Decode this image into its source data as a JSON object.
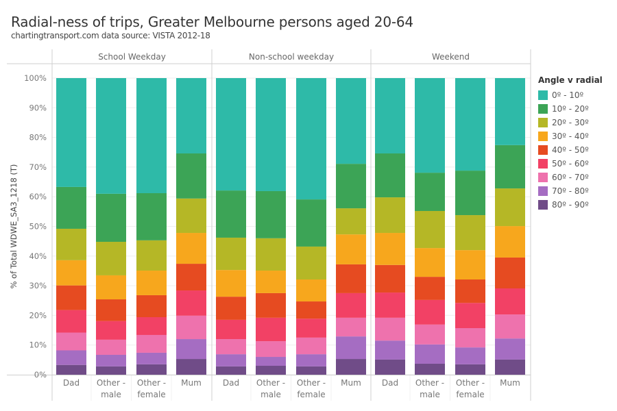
{
  "title": "Radial-ness of trips, Greater Melbourne persons aged 20-64",
  "subtitle": "chartingtransport.com  data source: VISTA 2012-18",
  "legend": {
    "title": "Angle v radial",
    "items": [
      {
        "label": "0º - 10º",
        "color": "#2EBAA8"
      },
      {
        "label": "10º - 20º",
        "color": "#3CA456"
      },
      {
        "label": "20º - 30º",
        "color": "#B5B726"
      },
      {
        "label": "30º - 40º",
        "color": "#F7A71D"
      },
      {
        "label": "40º - 50º",
        "color": "#E64B21"
      },
      {
        "label": "50º - 60º",
        "color": "#F24165"
      },
      {
        "label": "60º - 70º",
        "color": "#EE72AD"
      },
      {
        "label": "70º - 80º",
        "color": "#A56DC2"
      },
      {
        "label": "80º - 90º",
        "color": "#704C88"
      }
    ]
  },
  "chart_data": {
    "type": "bar",
    "stacked": true,
    "normalized": true,
    "title": "Radial-ness of trips, Greater Melbourne persons aged 20-64",
    "ylabel": "% of Total WDWE_SA3_1218 (T)",
    "xlabel": "",
    "ylim": [
      0,
      100
    ],
    "yticks": [
      "0%",
      "10%",
      "20%",
      "30%",
      "40%",
      "50%",
      "60%",
      "70%",
      "80%",
      "90%",
      "100%"
    ],
    "grid": true,
    "legend_position": "right",
    "panels": [
      "School Weekday",
      "Non-school weekday",
      "Weekend"
    ],
    "categories": [
      {
        "label": [
          "Dad"
        ]
      },
      {
        "label": [
          "Other -",
          "male"
        ]
      },
      {
        "label": [
          "Other -",
          "female"
        ]
      },
      {
        "label": [
          "Mum"
        ]
      }
    ],
    "series_names": [
      "0º - 10º",
      "10º - 20º",
      "20º - 30º",
      "30º - 40º",
      "40º - 50º",
      "50º - 60º",
      "60º - 70º",
      "70º - 80º",
      "80º - 90º"
    ],
    "values": {
      "School Weekday": [
        [
          36.7,
          14.1,
          10.6,
          8.5,
          8.3,
          7.6,
          6.0,
          4.9,
          3.3
        ],
        [
          39.0,
          16.2,
          11.3,
          8.1,
          7.3,
          6.3,
          5.1,
          3.9,
          2.8
        ],
        [
          38.8,
          15.9,
          10.2,
          8.3,
          7.4,
          6.0,
          6.0,
          3.9,
          3.5
        ],
        [
          25.4,
          15.2,
          11.6,
          10.4,
          9.0,
          8.5,
          7.9,
          6.7,
          5.3
        ]
      ],
      "Non-school weekday": [
        [
          37.9,
          15.9,
          10.9,
          9.0,
          7.8,
          6.5,
          5.1,
          4.1,
          2.8
        ],
        [
          38.1,
          15.9,
          10.9,
          7.6,
          8.3,
          7.9,
          5.3,
          3.0,
          3.0
        ],
        [
          40.9,
          15.9,
          11.1,
          7.4,
          5.8,
          6.4,
          5.6,
          4.1,
          2.8
        ],
        [
          28.9,
          15.0,
          8.8,
          10.1,
          9.7,
          8.3,
          6.3,
          7.6,
          5.3
        ]
      ],
      "Weekend": [
        [
          25.4,
          14.8,
          12.0,
          10.8,
          9.3,
          8.5,
          7.7,
          6.4,
          5.1
        ],
        [
          31.9,
          12.9,
          12.5,
          9.7,
          7.8,
          8.3,
          6.7,
          6.5,
          3.7
        ],
        [
          31.2,
          15.0,
          11.8,
          9.9,
          7.9,
          8.5,
          6.5,
          5.7,
          3.5
        ],
        [
          22.6,
          14.6,
          12.7,
          10.6,
          10.4,
          8.8,
          8.1,
          7.1,
          5.1
        ]
      ]
    }
  }
}
